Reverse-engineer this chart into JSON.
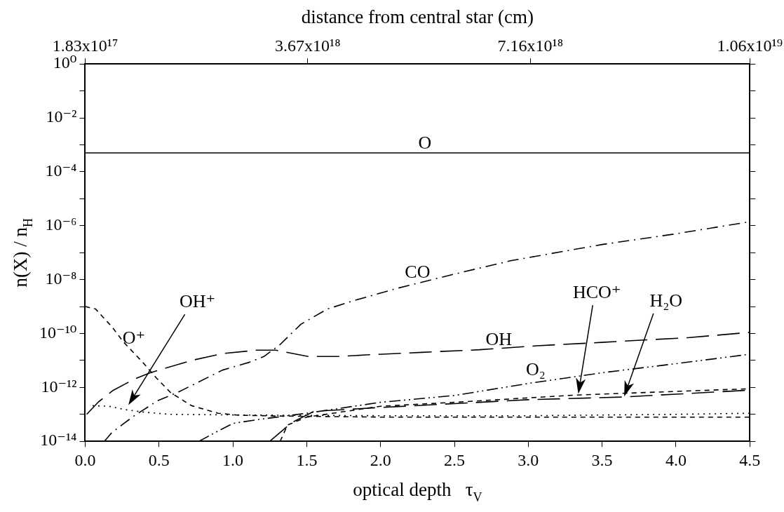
{
  "chart_data": {
    "type": "line",
    "xlabel": "optical depth   τ$_{V}$",
    "ylabel": "n(X) / n$_{H}$",
    "x2label": "distance from central star (cm)",
    "xlim": [
      0,
      4.5
    ],
    "xticks": [
      {
        "value": 0,
        "label": "0.0"
      },
      0.5,
      {
        "value": 1,
        "label": "1.0"
      },
      1.5,
      {
        "value": 2,
        "label": "2.0"
      },
      2.5,
      {
        "value": 3,
        "label": "3.0"
      },
      3.5,
      {
        "value": 4,
        "label": "4.0"
      },
      4.5
    ],
    "x2lim": [
      1.83e+17,
      1.06e+19
    ],
    "x2ticks": [
      {
        "value": 1.83e+17,
        "label": "1.83x10¹⁷"
      },
      {
        "value": 3.67e+18,
        "label": "3.67x10¹⁸"
      },
      {
        "value": 7.16e+18,
        "label": "7.16x10¹⁸"
      },
      {
        "value": 1.06e+19,
        "label": "1.06x10¹⁹"
      }
    ],
    "ylim": [
      1e-14,
      1
    ],
    "yticks": [
      {
        "value": 1,
        "label": "10⁰"
      },
      {
        "value": 0.1,
        "label": null
      },
      {
        "value": 0.01,
        "label": "10⁻²"
      },
      {
        "value": 0.001,
        "label": null
      },
      {
        "value": 0.0001,
        "label": "10⁻⁴"
      },
      {
        "value": 1e-05,
        "label": null
      },
      {
        "value": 1e-06,
        "label": "10⁻⁶"
      },
      {
        "value": 1e-07,
        "label": null
      },
      {
        "value": 1e-08,
        "label": "10⁻⁸"
      },
      {
        "value": 1e-09,
        "label": null
      },
      {
        "value": 1e-10,
        "label": "10⁻¹⁰"
      },
      {
        "value": 1e-11,
        "label": null
      },
      {
        "value": 1e-12,
        "label": "10⁻¹²"
      },
      {
        "value": 1e-13,
        "label": null
      },
      {
        "value": 1e-14,
        "label": "10⁻¹⁴"
      }
    ],
    "log": "y",
    "grid": false,
    "legend": false,
    "series": [
      {
        "color": "#000000",
        "line_style": "solid",
        "x": [
          0,
          4.5
        ],
        "values": [
          0.0005,
          0.0005
        ]
      },
      {
        "color": "#000000",
        "line_style": "dashdot",
        "x": [
          0.13,
          0.18,
          0.25,
          0.33,
          0.49,
          0.62,
          0.76,
          0.93,
          1.11,
          1.21,
          1.32,
          1.46,
          1.64,
          1.81,
          2.11,
          2.5,
          2.88,
          3.5,
          4.0,
          4.5
        ],
        "values": [
          1e-14,
          2.1e-14,
          4.1e-14,
          8.7e-14,
          3.2e-13,
          6.3e-13,
          1.5e-12,
          4.4e-12,
          8.5e-12,
          1.4e-11,
          3.9e-11,
          2.2e-10,
          8.1e-10,
          1.6e-09,
          4.7e-09,
          1.6e-08,
          5e-08,
          2e-07,
          5e-07,
          1.4e-06
        ]
      },
      {
        "color": "#000000",
        "line_style": "longdash",
        "x": [
          0.01,
          0.09,
          0.19,
          0.33,
          0.44,
          0.72,
          0.93,
          1.16,
          1.29,
          1.51,
          1.71,
          1.9,
          2.28,
          2.67,
          3.06,
          3.5,
          4.08,
          4.5
        ],
        "values": [
          1e-13,
          2.9e-13,
          7.8e-13,
          2e-12,
          3.5e-12,
          1e-11,
          1.8e-11,
          2.4e-11,
          2.4e-11,
          1.4e-11,
          1.4e-11,
          1.6e-11,
          2e-11,
          2.5e-11,
          3.5e-11,
          4.7e-11,
          7e-11,
          1.1e-10
        ]
      },
      {
        "color": "#000000",
        "line_style": "dashed",
        "x": [
          0,
          0.07,
          0.18,
          0.26,
          0.39,
          0.48,
          0.58,
          0.72,
          0.9,
          1.04,
          1.29,
          2,
          3,
          4,
          4.5
        ],
        "values": [
          1e-09,
          8.1e-10,
          1.8e-10,
          4.8e-11,
          8.5e-12,
          2.3e-12,
          6.3e-13,
          2.1e-13,
          1.1e-13,
          9.3e-14,
          8.7e-14,
          7.9e-14,
          7.9e-14,
          7.9e-14,
          7.9e-14
        ]
      },
      {
        "color": "#000000",
        "line_style": "dotted",
        "x": [
          0.05,
          0.16,
          0.27,
          0.4,
          0.58,
          1.0,
          2.0,
          3.0,
          4.0,
          4.5
        ],
        "values": [
          2.1e-13,
          2e-13,
          1.5e-13,
          1.2e-13,
          1e-13,
          9.5e-14,
          8.9e-14,
          8.9e-14,
          1e-13,
          1.1e-13
        ]
      },
      {
        "color": "#000000",
        "line_style": "dashdotdot",
        "x": [
          0.77,
          0.9,
          1.0,
          1.16,
          1.5,
          2.0,
          2.5,
          3.0,
          3.5,
          4.0,
          4.5
        ],
        "values": [
          1e-14,
          2.4e-14,
          4.6e-14,
          6.3e-14,
          1.1e-13,
          2.8e-13,
          5e-13,
          1.4e-12,
          3.5e-12,
          7.6e-12,
          1.7e-11
        ]
      },
      {
        "color": "#000000",
        "line_style": "dashed",
        "x": [
          1.32,
          1.37,
          1.5,
          2.0,
          2.5,
          3.32,
          4.0,
          4.5
        ],
        "values": [
          1e-14,
          4e-14,
          7.9e-14,
          2e-13,
          2.8e-13,
          5.2e-13,
          7.1e-13,
          8.9e-13
        ]
      },
      {
        "color": "#000000",
        "line_style": "longdash",
        "x": [
          1.25,
          1.4,
          1.55,
          2.0,
          2.5,
          3.0,
          3.64,
          4.0,
          4.5
        ],
        "values": [
          1e-14,
          5e-14,
          1.3e-13,
          1.8e-13,
          2.5e-13,
          3.5e-13,
          4.4e-13,
          5.6e-13,
          7.9e-13
        ]
      }
    ],
    "annotations": [
      {
        "text": "O",
        "x": 2.3,
        "y": 0.0005
      },
      {
        "text": "CO",
        "x": 2.25,
        "y": 8e-09
      },
      "OH⁺",
      {
        "text": "O⁺",
        "x": 0.33,
        "y": 3e-11
      },
      {
        "text": "OH",
        "x": 2.8,
        "y": 2.6e-11
      },
      {
        "text": "O₂",
        "x": 3.05,
        "y": 2e-12
      },
      "HCO⁺",
      "H₂O"
    ]
  }
}
